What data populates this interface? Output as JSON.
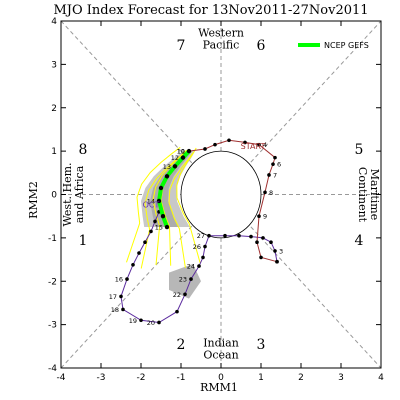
{
  "chart_data": {
    "type": "line",
    "title": "MJO Index Forecast for 13Nov2011-27Nov2011",
    "xlabel": "RMM1",
    "ylabel": "RMM2",
    "xlim": [
      -4,
      4
    ],
    "ylim": [
      -4,
      4
    ],
    "x_ticks": [
      "-4",
      "-3",
      "-2",
      "-1",
      "0",
      "1",
      "2",
      "3",
      "4"
    ],
    "y_ticks": [
      "-4",
      "-3",
      "-2",
      "-1",
      "0",
      "1",
      "2",
      "3",
      "4"
    ],
    "phase_labels": [
      {
        "text": "1",
        "x": -3.45,
        "y": -1.05
      },
      {
        "text": "2",
        "x": -1.0,
        "y": -3.45
      },
      {
        "text": "3",
        "x": 1.0,
        "y": -3.45
      },
      {
        "text": "4",
        "x": 3.45,
        "y": -1.05
      },
      {
        "text": "5",
        "x": 3.45,
        "y": 1.05
      },
      {
        "text": "6",
        "x": 1.0,
        "y": 3.45
      },
      {
        "text": "7",
        "x": -1.0,
        "y": 3.45
      },
      {
        "text": "8",
        "x": -3.45,
        "y": 1.05
      }
    ],
    "regions": [
      {
        "lines": [
          "Western",
          "Pacific"
        ],
        "x": 0,
        "y": 3.6
      },
      {
        "lines": [
          "Indian",
          "Ocean"
        ],
        "x": 0,
        "y": -3.55
      },
      {
        "lines": [
          "West. Hem.",
          "and Africa"
        ],
        "x": -3.7,
        "y": 0,
        "rotate": -90
      },
      {
        "lines": [
          "Maritime",
          "Continent"
        ],
        "x": 3.7,
        "y": 0,
        "rotate": 90
      }
    ],
    "legend": {
      "label": "NCEP GEFS",
      "color": "#00ff00",
      "position": "top-right"
    },
    "annotations": [
      {
        "text": "OCT",
        "x": -1.75,
        "y": -0.3,
        "color": "#6633aa"
      },
      {
        "text": "START",
        "x": 0.8,
        "y": 1.05,
        "color": "#a03030"
      }
    ],
    "colors": {
      "oct": "#5b2b9e",
      "nov": "#a03030",
      "mean": "#00ff00",
      "members": "#ffff00",
      "spread_dark": "#999999",
      "spread_light": "#c8c8c8"
    },
    "series": [
      {
        "name": "OCT",
        "color": "#5b2b9e",
        "points": [
          {
            "x": -1.55,
            "y": -0.4,
            "label": ""
          },
          {
            "x": -1.65,
            "y": -0.62,
            "label": ""
          },
          {
            "x": -1.75,
            "y": -0.85,
            "label": ""
          },
          {
            "x": -1.9,
            "y": -1.1,
            "label": ""
          },
          {
            "x": -2.05,
            "y": -1.35,
            "label": ""
          },
          {
            "x": -2.2,
            "y": -1.62,
            "label": ""
          },
          {
            "x": -2.35,
            "y": -1.95,
            "label": "16"
          },
          {
            "x": -2.5,
            "y": -2.35,
            "label": "17"
          },
          {
            "x": -2.45,
            "y": -2.65,
            "label": "18"
          },
          {
            "x": -2.0,
            "y": -2.9,
            "label": "19"
          },
          {
            "x": -1.55,
            "y": -2.95,
            "label": "20"
          },
          {
            "x": -1.1,
            "y": -2.7,
            "label": ""
          },
          {
            "x": -0.9,
            "y": -2.3,
            "label": "22"
          },
          {
            "x": -0.75,
            "y": -1.95,
            "label": "23"
          },
          {
            "x": -0.55,
            "y": -1.65,
            "label": "24"
          },
          {
            "x": -0.45,
            "y": -1.45,
            "label": ""
          },
          {
            "x": -0.4,
            "y": -1.2,
            "label": "26"
          },
          {
            "x": -0.3,
            "y": -0.95,
            "label": "27"
          },
          {
            "x": 0.1,
            "y": -0.95,
            "label": ""
          },
          {
            "x": 0.45,
            "y": -0.95,
            "label": ""
          },
          {
            "x": 0.75,
            "y": -0.97,
            "label": ""
          },
          {
            "x": 1.05,
            "y": -1.0,
            "label": ""
          },
          {
            "x": 1.25,
            "y": -1.1,
            "label": ""
          },
          {
            "x": 1.35,
            "y": -1.3,
            "label": "3"
          },
          {
            "x": 1.4,
            "y": -1.55,
            "label": ""
          }
        ]
      },
      {
        "name": "NOV",
        "color": "#a03030",
        "points": [
          {
            "x": 1.4,
            "y": -1.55,
            "label": ""
          },
          {
            "x": 1.0,
            "y": -1.45,
            "label": ""
          },
          {
            "x": 0.9,
            "y": -1.1,
            "label": ""
          },
          {
            "x": 0.95,
            "y": -0.5,
            "label": "9"
          },
          {
            "x": 1.1,
            "y": 0.05,
            "label": "8"
          },
          {
            "x": 1.2,
            "y": 0.45,
            "label": "7"
          },
          {
            "x": 1.3,
            "y": 0.7,
            "label": "6"
          },
          {
            "x": 1.35,
            "y": 0.85,
            "label": ""
          },
          {
            "x": 0.95,
            "y": 1.15,
            "label": "4"
          },
          {
            "x": 0.6,
            "y": 1.2,
            "label": ""
          },
          {
            "x": 0.2,
            "y": 1.25,
            "label": ""
          },
          {
            "x": -0.15,
            "y": 1.15,
            "label": ""
          },
          {
            "x": -0.4,
            "y": 1.05,
            "label": ""
          },
          {
            "x": -0.8,
            "y": 1.0,
            "label": "10"
          }
        ]
      },
      {
        "name": "NCEP GEFS",
        "color": "#00ff00",
        "points": [
          {
            "x": -0.8,
            "y": 1.0,
            "label": "11"
          },
          {
            "x": -0.95,
            "y": 0.85,
            "label": "12"
          },
          {
            "x": -1.15,
            "y": 0.65,
            "label": "13"
          },
          {
            "x": -1.35,
            "y": 0.42,
            "label": ""
          },
          {
            "x": -1.5,
            "y": 0.15,
            "label": ""
          },
          {
            "x": -1.55,
            "y": -0.15,
            "label": "14"
          },
          {
            "x": -1.45,
            "y": -0.5,
            "label": ""
          },
          {
            "x": -1.35,
            "y": -0.75,
            "label": "15"
          }
        ]
      }
    ]
  }
}
